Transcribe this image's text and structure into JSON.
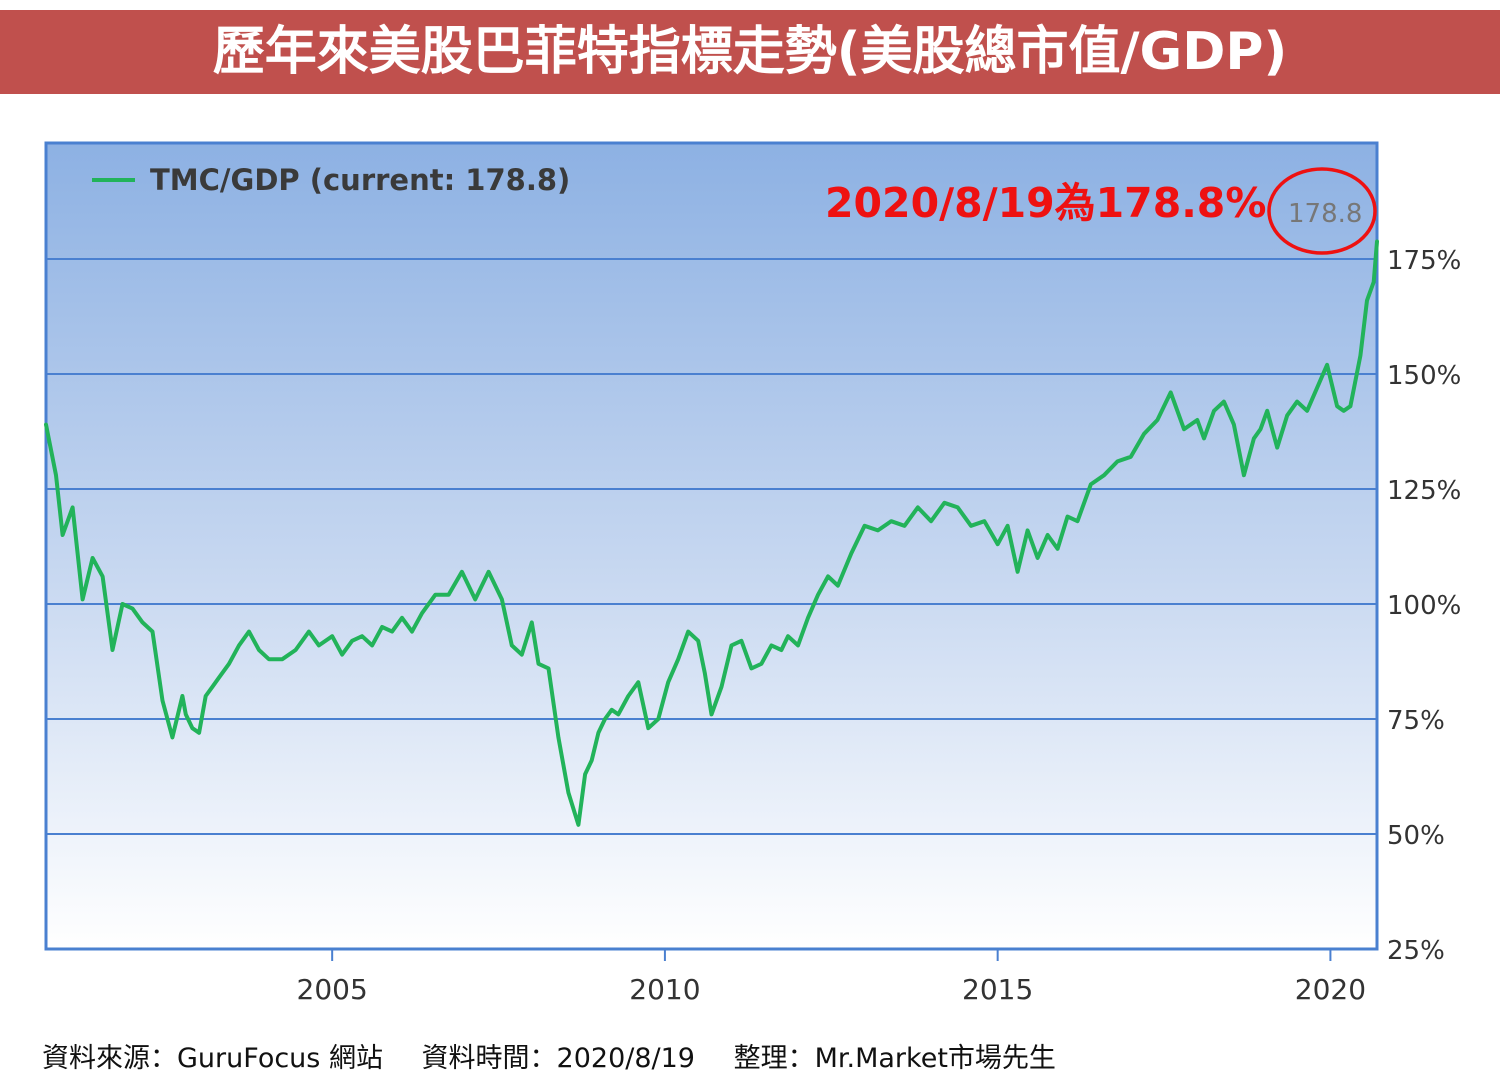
{
  "header": {
    "title": "歷年來美股巴菲特指標走勢(美股總市值/GDP)"
  },
  "footer": {
    "source": "資料來源：GuruFocus 網站",
    "date": "資料時間：2020/8/19",
    "author": "整理：Mr.Market市場先生"
  },
  "chart_data": {
    "type": "line",
    "title": "",
    "xlabel": "",
    "ylabel": "",
    "xlim": [
      2000.7,
      2020.7
    ],
    "ylim": [
      25,
      200
    ],
    "x_ticks": [
      "2005",
      "2010",
      "2015",
      "2020"
    ],
    "y_ticks": [
      "175%",
      "150%",
      "125%",
      "100%",
      "75%",
      "50%",
      "25%"
    ],
    "grid": true,
    "legend": {
      "position": "top-left",
      "label": "TMC/GDP (current: 178.8)"
    },
    "end_label": "178.8",
    "annotation": "2020/8/19為178.8%",
    "colors": {
      "line": "#22b35a",
      "annotation": "#ee1111",
      "banner": "#c0504d",
      "grid": "#4a80d0"
    },
    "series": [
      {
        "x": [
          2000.7,
          2000.85,
          2000.95,
          2001.1,
          2001.25,
          2001.4,
          2001.55,
          2001.7,
          2001.85,
          2002.0,
          2002.15,
          2002.3,
          2002.45,
          2002.6,
          2002.75,
          2002.8,
          2002.9,
          2003.0,
          2003.1,
          2003.2,
          2003.3,
          2003.45,
          2003.6,
          2003.75,
          2003.9,
          2004.05,
          2004.25,
          2004.45,
          2004.65,
          2004.8,
          2005.0,
          2005.15,
          2005.3,
          2005.45,
          2005.6,
          2005.75,
          2005.9,
          2006.05,
          2006.2,
          2006.35,
          2006.55,
          2006.75,
          2006.95,
          2007.15,
          2007.35,
          2007.55,
          2007.7,
          2007.85,
          2008.0,
          2008.1,
          2008.25,
          2008.4,
          2008.55,
          2008.7,
          2008.8,
          2008.9,
          2009.0,
          2009.1,
          2009.2,
          2009.3,
          2009.45,
          2009.6,
          2009.75,
          2009.9,
          2010.05,
          2010.2,
          2010.35,
          2010.5,
          2010.6,
          2010.7,
          2010.85,
          2011.0,
          2011.15,
          2011.3,
          2011.45,
          2011.6,
          2011.75,
          2011.85,
          2012.0,
          2012.15,
          2012.3,
          2012.45,
          2012.6,
          2012.8,
          2013.0,
          2013.2,
          2013.4,
          2013.6,
          2013.8,
          2014.0,
          2014.2,
          2014.4,
          2014.6,
          2014.8,
          2015.0,
          2015.15,
          2015.3,
          2015.45,
          2015.6,
          2015.75,
          2015.9,
          2016.05,
          2016.2,
          2016.4,
          2016.6,
          2016.8,
          2017.0,
          2017.2,
          2017.4,
          2017.6,
          2017.8,
          2018.0,
          2018.1,
          2018.25,
          2018.4,
          2018.55,
          2018.7,
          2018.85,
          2018.95,
          2019.05,
          2019.2,
          2019.35,
          2019.5,
          2019.65,
          2019.8,
          2019.95,
          2020.1,
          2020.2,
          2020.3,
          2020.45,
          2020.55,
          2020.65,
          2020.7
        ],
        "values": [
          139,
          128,
          115,
          121,
          101,
          110,
          106,
          90,
          100,
          99,
          96,
          94,
          79,
          71,
          80,
          76,
          73,
          72,
          80,
          82,
          84,
          87,
          91,
          94,
          90,
          88,
          88,
          90,
          94,
          91,
          93,
          89,
          92,
          93,
          91,
          95,
          94,
          97,
          94,
          98,
          102,
          102,
          107,
          101,
          107,
          101,
          91,
          89,
          96,
          87,
          86,
          71,
          59,
          52,
          63,
          66,
          72,
          75,
          77,
          76,
          80,
          83,
          73,
          75,
          83,
          88,
          94,
          92,
          85,
          76,
          82,
          91,
          92,
          86,
          87,
          91,
          90,
          93,
          91,
          97,
          102,
          106,
          104,
          111,
          117,
          116,
          118,
          117,
          121,
          118,
          122,
          121,
          117,
          118,
          113,
          117,
          107,
          116,
          110,
          115,
          112,
          119,
          118,
          126,
          128,
          131,
          132,
          137,
          140,
          146,
          138,
          140,
          136,
          142,
          144,
          139,
          128,
          136,
          138,
          142,
          134,
          141,
          144,
          142,
          147,
          152,
          143,
          142,
          143,
          154,
          166,
          170,
          178.8
        ]
      }
    ]
  }
}
